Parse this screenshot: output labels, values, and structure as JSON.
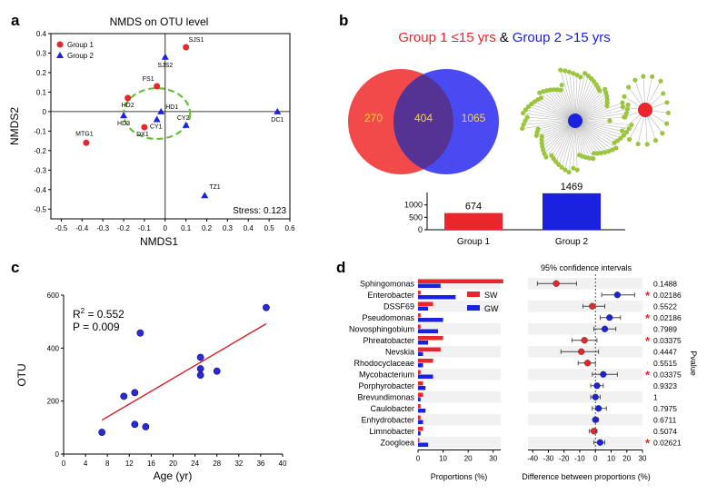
{
  "panel_letters": {
    "a": "a",
    "b": "b",
    "c": "c",
    "d": "d"
  },
  "colors": {
    "group1": "#e8262b",
    "group2": "#1a22e0",
    "overlap": "#4a2a9a",
    "ellipse": "#6abf3a",
    "node": "#9bc53d",
    "edge": "#b8b8b8",
    "sig": "#e8262b"
  },
  "chart_data": [
    {
      "id": "a",
      "type": "scatter",
      "title": "NMDS  on OTU  level",
      "xlabel": "NMDS1",
      "ylabel": "NMDS2",
      "xlim": [
        -0.55,
        0.6
      ],
      "ylim": [
        -0.55,
        0.4
      ],
      "xticks": [
        "-0.5",
        "-0.4",
        "-0.3",
        "-0.2",
        "-0.1",
        "0",
        "0.1",
        "0.2",
        "0.3",
        "0.4",
        "0.5",
        "0.6"
      ],
      "xtick_values": [
        -0.5,
        -0.4,
        -0.3,
        -0.2,
        -0.1,
        0,
        0.1,
        0.2,
        0.3,
        0.4,
        0.5,
        0.6
      ],
      "yticks": [
        "0.4",
        "0.3",
        "0.2",
        "0.1",
        "0",
        "-0.1",
        "-0.2",
        "-0.3",
        "-0.4",
        "-0.5"
      ],
      "ytick_values": [
        0.4,
        0.3,
        0.2,
        0.1,
        0,
        -0.1,
        -0.2,
        -0.3,
        -0.4,
        -0.5
      ],
      "legend": [
        "Group 1",
        "Group 2"
      ],
      "stress_label": "Stress: 0.123",
      "points": [
        {
          "label": "SJS1",
          "x": 0.1,
          "y": 0.33,
          "group": 1
        },
        {
          "label": "SJS2",
          "x": 0.0,
          "y": 0.28,
          "group": 2
        },
        {
          "label": "FS1",
          "x": -0.04,
          "y": 0.13,
          "group": 1
        },
        {
          "label": "HD2",
          "x": -0.18,
          "y": 0.07,
          "group": 1
        },
        {
          "label": "HD1",
          "x": -0.02,
          "y": 0.0,
          "group": 2
        },
        {
          "label": "HD3",
          "x": -0.2,
          "y": -0.02,
          "group": 2
        },
        {
          "label": "CY1",
          "x": -0.04,
          "y": -0.04,
          "group": 2
        },
        {
          "label": "DX1",
          "x": -0.1,
          "y": -0.08,
          "group": 1
        },
        {
          "label": "CY2",
          "x": 0.1,
          "y": -0.07,
          "group": 2
        },
        {
          "label": "DC1",
          "x": 0.54,
          "y": 0.0,
          "group": 2
        },
        {
          "label": "MTG1",
          "x": -0.38,
          "y": -0.16,
          "group": 1
        },
        {
          "label": "TZ1",
          "x": 0.19,
          "y": -0.43,
          "group": 2
        }
      ],
      "ellipse": {
        "cx": -0.04,
        "cy": -0.01,
        "rx": 0.16,
        "ry": 0.13
      }
    },
    {
      "id": "b",
      "type": "bar",
      "title_part1": "Group 1 ≤15 yrs",
      "title_amp": "&",
      "title_part2": "Group 2 >15 yrs",
      "venn": {
        "group1_only": "270",
        "shared": "404",
        "group2_only": "1065"
      },
      "categories": [
        "Group 1",
        "Group 2"
      ],
      "values": [
        674,
        1469
      ],
      "yticks": [
        "1000",
        "500",
        "0"
      ],
      "ytick_values": [
        1000,
        500,
        0
      ],
      "ylim": [
        0,
        1500
      ],
      "network": {
        "group2_nodes": 82,
        "group1_nodes": 18
      }
    },
    {
      "id": "c",
      "type": "scatter",
      "xlabel": "Age (yr)",
      "ylabel": "OTU",
      "xlim": [
        0,
        40
      ],
      "ylim": [
        0,
        600
      ],
      "xticks": [
        "0",
        "4",
        "8",
        "12",
        "16",
        "20",
        "24",
        "28",
        "32",
        "36",
        "40"
      ],
      "xtick_values": [
        0,
        4,
        8,
        12,
        16,
        20,
        24,
        28,
        32,
        36,
        40
      ],
      "yticks": [
        "600",
        "400",
        "200",
        "0"
      ],
      "ytick_values": [
        600,
        400,
        200,
        0
      ],
      "r2_prefix": "R",
      "r2_sup": "2",
      "r2_value": " = 0.552",
      "p_label": "P = 0.009",
      "x": [
        7,
        11,
        13,
        13,
        14,
        15,
        25,
        25,
        25,
        28,
        37
      ],
      "y": [
        82,
        218,
        232,
        112,
        457,
        103,
        365,
        322,
        298,
        313,
        553
      ],
      "fit": {
        "x": [
          7,
          37
        ],
        "y": [
          128,
          492
        ]
      }
    },
    {
      "id": "d",
      "type": "bar",
      "left_xlabel": "Proportions   (%)",
      "right_xlabel": "Difference between   proportions  (%)",
      "ci_title": "95% confidence  intervals",
      "pvalue_label": "Pvalue",
      "legend": [
        "SW",
        "GW"
      ],
      "left_xticks": [
        "0",
        "10",
        "20",
        "30"
      ],
      "left_xtick_values": [
        0,
        10,
        20,
        30
      ],
      "left_xlim": [
        0,
        33
      ],
      "right_xticks": [
        "-40",
        "-30",
        "-20",
        "-10",
        "0",
        "10",
        "20",
        "30"
      ],
      "right_xtick_values": [
        -40,
        -30,
        -20,
        -10,
        0,
        10,
        20,
        30
      ],
      "right_xlim": [
        -43,
        30
      ],
      "significance_mark": "*",
      "taxa": [
        "Sphingomonas",
        "Enterobacter",
        "DSSF69",
        "Pseudomonas",
        "Novosphingobium",
        "Phreatobacter",
        "Nevskia",
        "Rhodocyclaceae",
        "Mycobacterium",
        "Porphyrobacter",
        "Brevundimonas",
        "Caulobacter",
        "Enhydrobacter",
        "Limnobacter",
        "Zoogloea"
      ],
      "series": [
        {
          "name": "SW",
          "values": [
            34,
            1,
            6,
            1,
            1,
            10,
            9,
            6,
            1,
            2,
            2,
            1,
            1,
            2,
            0.5
          ]
        },
        {
          "name": "GW",
          "values": [
            9,
            15,
            4,
            10,
            8,
            4,
            2,
            2,
            6,
            3,
            1,
            3,
            2,
            1,
            4
          ]
        }
      ],
      "diff": [
        -25,
        14,
        -2,
        9,
        6,
        -7,
        -9,
        -5,
        5,
        1,
        0,
        2,
        0,
        -1,
        3
      ],
      "ci_low": [
        -37,
        4,
        -8,
        3,
        -1,
        -15,
        -22,
        -11,
        -2,
        -3,
        -3,
        -2,
        -1,
        -4,
        -1
      ],
      "ci_high": [
        -12,
        25,
        6,
        16,
        13,
        1,
        2,
        0,
        14,
        5,
        3,
        7,
        2,
        1,
        6
      ],
      "pvalues": [
        "0.1488",
        "0.02186",
        "0.5522",
        "0.02186",
        "0.7989",
        "0.03375",
        "0.4447",
        "0.5515",
        "0.03375",
        "0.9323",
        "1",
        "0.7975",
        "0.6711",
        "0.5074",
        "0.02621"
      ],
      "significant": [
        false,
        true,
        false,
        true,
        false,
        true,
        false,
        false,
        true,
        false,
        false,
        false,
        false,
        false,
        true
      ]
    }
  ]
}
